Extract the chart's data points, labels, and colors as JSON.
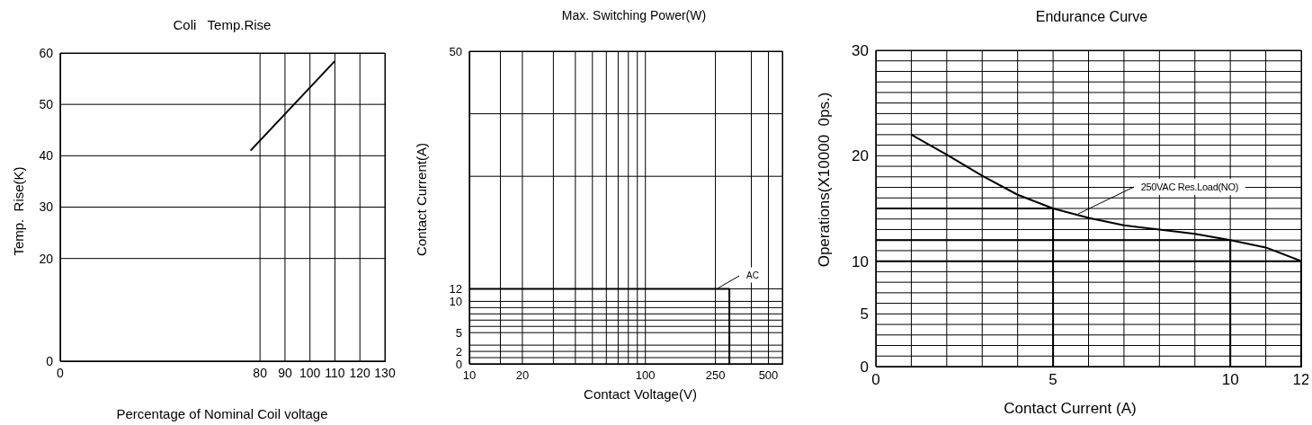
{
  "chart_data": [
    {
      "type": "line",
      "title": "Coli   Temp.Rise",
      "xlabel": "Percentage of Nominal Coil voltage",
      "ylabel": "Temp.  Rise(K)",
      "x": [
        76.2,
        109.9
      ],
      "series": [
        {
          "color": "#000000",
          "values": [
            41,
            58.4
          ]
        }
      ],
      "xlim": [
        0,
        130
      ],
      "xticks": [
        0,
        80,
        90,
        100,
        110,
        120,
        130
      ],
      "ylim": [
        0,
        60
      ],
      "yticks": [
        0,
        20,
        30,
        40,
        50,
        60
      ],
      "grid": true
    },
    {
      "type": "line",
      "title": "Max. Switching Power(W)",
      "xlabel": "Contact Voltage(V)",
      "ylabel": "Contact Current(A)",
      "log": "x",
      "series": [
        {
          "color": "#000000",
          "x": [
            10,
            300,
            300
          ],
          "values": [
            12,
            12,
            0
          ]
        }
      ],
      "xlim": [
        10,
        600
      ],
      "xticks": [
        10,
        {
          "value": 15,
          "label": null
        },
        20,
        {
          "value": 30,
          "label": null
        },
        {
          "value": 40,
          "label": null
        },
        {
          "value": 50,
          "label": null
        },
        {
          "value": 60,
          "label": null
        },
        {
          "value": 70,
          "label": null
        },
        {
          "value": 80,
          "label": null
        },
        {
          "value": 90,
          "label": null
        },
        100,
        250,
        {
          "value": 400,
          "label": null
        },
        500
      ],
      "ylim": [
        0,
        50
      ],
      "yticks": [
        0,
        {
          "value": 1,
          "label": null
        },
        2,
        {
          "value": 3,
          "label": null
        },
        5,
        {
          "value": 6,
          "label": null
        },
        {
          "value": 7,
          "label": null
        },
        {
          "value": 8,
          "label": null
        },
        {
          "value": 9,
          "label": null
        },
        10,
        12,
        {
          "value": 30,
          "label": null
        },
        {
          "value": 40,
          "label": null
        },
        50
      ],
      "grid": true,
      "annotations": [
        "AC"
      ]
    },
    {
      "type": "line",
      "title": "Endurance Curve",
      "xlabel": "Contact Current (A)",
      "ylabel": "Operations(X10000  0ps.)",
      "series": [
        {
          "color": "#000000",
          "x": [
            1,
            2,
            3,
            4,
            5,
            6,
            7,
            8,
            9,
            10,
            11,
            12
          ],
          "values": [
            22,
            20.1,
            18.1,
            16.3,
            15,
            14.1,
            13.4,
            13,
            12.6,
            12,
            11.3,
            10
          ]
        },
        {
          "color": "#000000",
          "x": [
            0,
            5,
            5
          ],
          "values": [
            15,
            15,
            0
          ]
        },
        {
          "color": "#000000",
          "x": [
            0,
            10,
            10
          ],
          "values": [
            12,
            12,
            0
          ]
        },
        {
          "color": "#000000",
          "x": [
            0,
            12,
            12
          ],
          "values": [
            10,
            10,
            0
          ]
        }
      ],
      "xlim": [
        0,
        12
      ],
      "xticks": [
        0,
        {
          "value": 1,
          "label": null
        },
        {
          "value": 2,
          "label": null
        },
        {
          "value": 3,
          "label": null
        },
        {
          "value": 4,
          "label": null
        },
        5,
        {
          "value": 6,
          "label": null
        },
        {
          "value": 7,
          "label": null
        },
        {
          "value": 8,
          "label": null
        },
        {
          "value": 9,
          "label": null
        },
        10,
        {
          "value": 11,
          "label": null
        },
        12
      ],
      "ylim": [
        0,
        30
      ],
      "yticks": [
        0,
        {
          "value": 1,
          "label": null
        },
        {
          "value": 2,
          "label": null
        },
        {
          "value": 3,
          "label": null
        },
        {
          "value": 4,
          "label": null
        },
        5,
        {
          "value": 6,
          "label": null
        },
        {
          "value": 7,
          "label": null
        },
        {
          "value": 8,
          "label": null
        },
        {
          "value": 9,
          "label": null
        },
        10,
        {
          "value": 11,
          "label": null
        },
        {
          "value": 12,
          "label": null
        },
        {
          "value": 13,
          "label": null
        },
        {
          "value": 14,
          "label": null
        },
        {
          "value": 15,
          "label": null
        },
        {
          "value": 16,
          "label": null
        },
        {
          "value": 17,
          "label": null
        },
        {
          "value": 18,
          "label": null
        },
        {
          "value": 19,
          "label": null
        },
        20,
        {
          "value": 21,
          "label": null
        },
        {
          "value": 22,
          "label": null
        },
        {
          "value": 23,
          "label": null
        },
        {
          "value": 24,
          "label": null
        },
        {
          "value": 25,
          "label": null
        },
        {
          "value": 26,
          "label": null
        },
        {
          "value": 27,
          "label": null
        },
        {
          "value": 28,
          "label": null
        },
        {
          "value": 29,
          "label": null
        },
        30
      ],
      "grid": true,
      "annotations": [
        {
          "text": "250VAC Res.Load(NO)",
          "x": 5.7,
          "y": 14.5
        }
      ]
    }
  ]
}
